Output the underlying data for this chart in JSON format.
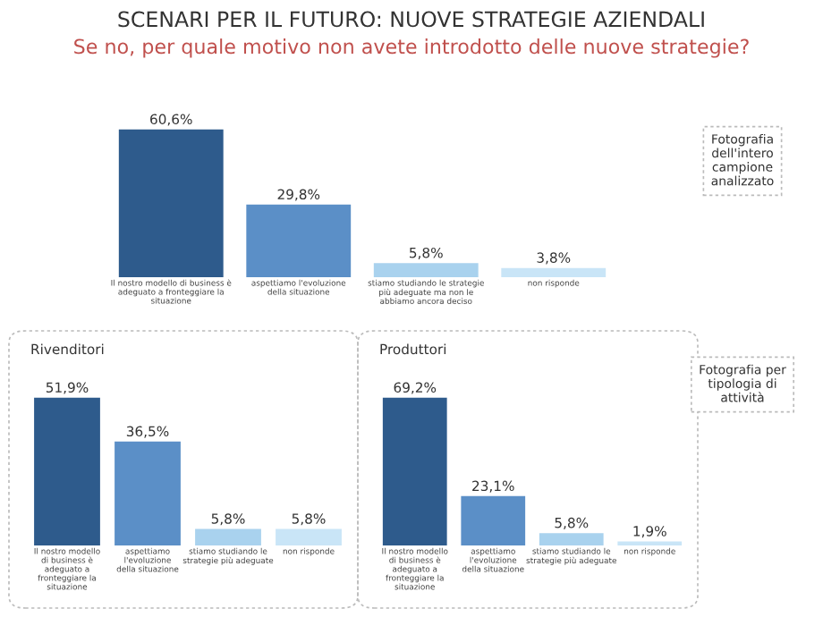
{
  "chart_data": [
    {
      "type": "bar",
      "title": "SCENARI PER IL FUTURO: NUOVE STRATEGIE AZIENDALI",
      "subtitle": "Se no, per quale motivo non avete introdotto delle nuove strategie?",
      "categories": [
        "Il nostro modello di business è\nadeguato a fronteggiare la\nsituazione",
        "aspettiamo l'evoluzione\ndella situazione",
        "stiamo studiando le strategie\npiù adeguate ma non le\nabbiamo ancora deciso",
        "non risponde"
      ],
      "values": [
        60.6,
        29.8,
        5.8,
        3.8
      ],
      "colors": [
        "#2e5b8c",
        "#5b8fc7",
        "#a9d2ee",
        "#c9e5f7"
      ],
      "value_labels": [
        "60,6%",
        "29,8%",
        "5,8%",
        "3,8%"
      ],
      "annotations": [
        "Fotografia\ndell'intero\ncampione\nanalizzato"
      ]
    },
    {
      "type": "bar",
      "title": "Rivenditori",
      "categories": [
        "Il nostro modello\ndi business è\nadeguato a\nfronteggiare la\nsituazione",
        "aspettiamo\nl'evoluzione\ndella situazione",
        "stiamo studiando le\nstrategie più adeguate",
        "non risponde"
      ],
      "values": [
        51.9,
        36.5,
        5.8,
        5.8
      ],
      "colors": [
        "#2e5b8c",
        "#5b8fc7",
        "#a9d2ee",
        "#c9e5f7"
      ],
      "value_labels": [
        "51,9%",
        "36,5%",
        "5,8%",
        "5,8%"
      ],
      "annotations": [
        "Fotografia per\ntipologia di\nattività"
      ]
    },
    {
      "type": "bar",
      "title": "Produttori",
      "categories": [
        "Il nostro modello\ndi business è\nadeguato a\nfronteggiare la\nsituazione",
        "aspettiamo\nl'evoluzione\ndella situazione",
        "stiamo studiando le\nstrategie più adeguate",
        "non risponde"
      ],
      "values": [
        69.2,
        23.1,
        5.8,
        1.9
      ],
      "colors": [
        "#2e5b8c",
        "#5b8fc7",
        "#a9d2ee",
        "#c9e5f7"
      ],
      "value_labels": [
        "69,2%",
        "23,1%",
        "5,8%",
        "1,9%"
      ]
    }
  ]
}
